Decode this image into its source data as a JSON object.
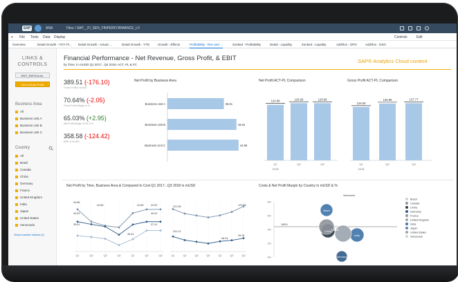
{
  "shell": {
    "logo": "SAP",
    "app_label": "ANA",
    "breadcrumb": "Files / SAP__FI_SEN_FINPERFORMANCE_LV"
  },
  "menu": {
    "items": [
      "File",
      "Tools",
      "Data",
      "Display"
    ],
    "right_items": [
      "Controls",
      "Edit"
    ]
  },
  "tabs": [
    "Overview",
    "Detail Growth - YOY Pr...",
    "Detail Growth - Actual ...",
    "Detail Growth - YTD",
    "Growth - Effects",
    "Profitability - Rev and ...",
    "Zonked - Profitability",
    "Detail - Liquidity",
    "Zonked - Liquidity",
    "Add'tlon - DPO",
    "Add'tlon - DSO"
  ],
  "active_tab_index": 5,
  "side_panel": {
    "header": "LINKS & CONTROLS",
    "button_1": "EBIT_EBITDA etc.",
    "button_2": "Go to Gross Profit",
    "business_area_label": "Business Area",
    "business_area_items": [
      "All",
      "Business Unit A",
      "Business Unit B",
      "Business Unit C"
    ],
    "country_label": "Country",
    "country_items": [
      "All",
      "Brazil",
      "Canada",
      "China",
      "Germany",
      "France",
      "United Kingdom",
      "India",
      "Japan",
      "United States",
      "Venezuela"
    ],
    "show_inactive": "Show Inactive Values (2)"
  },
  "header": {
    "title": "Financial Performance - Net Revenue, Gross Profit, & EBIT",
    "subtitle": "by Time, in mUSD Q1 2017...Q4 2018, ACT, PL & FC",
    "brand": "SAP® Analytics Cloud content"
  },
  "kpis": [
    {
      "value": "389.51",
      "delta": "(-176.10)",
      "delta_sign": "neg",
      "caption": "Gross Profit in mUSD"
    },
    {
      "value": "70.64%",
      "delta": "(-2.05)",
      "delta_sign": "neg",
      "caption": "Gross Profit Margin in %"
    },
    {
      "value": "65.03%",
      "delta": "(+2.95)",
      "delta_sign": "pos",
      "caption": "Net Profit Margin 2018 in %"
    },
    {
      "value": "358.58",
      "delta": "(-124.42)",
      "delta_sign": "neg",
      "caption": "EBIT in mUSD"
    }
  ],
  "chart_titles": {
    "business_area": "Net Profit by Business Area",
    "net_profit_act_pl": "Net Profit ACT-PL Comparison",
    "gross_profit_act_pl": "Gross Profit ACT-PL Comparison",
    "net_profit_time": "Net Profit by Time, Business Area & Compared to Cost Q1 2017...Q3 2018 in mUSD",
    "costs_country": "Costs & Net Profit Margin by Country in mUSD & %"
  },
  "colors": {
    "accent": "#f0ab00",
    "bar": "#a8c8e8",
    "bar_dark": "#5b86b2",
    "negative": "#e00000",
    "positive": "#2b7d2b",
    "shell": "#354a5f"
  },
  "chart_data": [
    {
      "type": "bar",
      "orientation": "horizontal",
      "title": "Net Profit by Business Area",
      "categories": [
        "Business Unit A",
        "Business Unit B",
        "Business Unit C"
      ],
      "values": [
        35.61,
        43.52,
        44.86
      ]
    },
    {
      "type": "bar",
      "title": "Net Profit ACT-PL Comparison",
      "categories": [
        "Q1",
        "Q2",
        "Q3"
      ],
      "category_group": "2018",
      "values": [
        124.98,
        128.69,
        128.68
      ]
    },
    {
      "type": "bar",
      "title": "Gross Profit ACT-PL Comparison",
      "categories": [
        "Q1",
        "Q2",
        "Q3"
      ],
      "category_group": "2018",
      "values": [
        128.59,
        136.98,
        137.77
      ]
    },
    {
      "type": "line",
      "title": "Net Profit by Time, Business Area & Compared to Cost Q1 2017...Q3 2018 in mUSD",
      "panels": [
        {
          "x": [
            "Q1",
            "Q2",
            "Q3",
            "Q4",
            "Q1",
            "Q2",
            "Q3"
          ],
          "series": [
            {
              "values": [
                44.86,
                40.52,
                39.11,
                38.52,
                43.52,
                44.86,
                44.86
              ]
            },
            {
              "values": [
                40.52,
                39.6,
                38.81,
                35.92,
                39.51,
                40.52,
                40.52
              ]
            },
            {
              "values": [
                35.61,
                35.12,
                34.55,
                32.27,
                34.38,
                37.41,
                37.41
              ]
            }
          ],
          "labels": [
            "44.86",
            "40.52",
            "35.61",
            "44.86",
            "44.86",
            "43.52",
            "40.52",
            "37.41",
            "35.61"
          ]
        },
        {
          "x": [
            "Q1",
            "Q2",
            "Q3",
            "Q4",
            "Q1",
            "Q2",
            "Q3"
          ],
          "series": [
            {
              "values": [
                121.55,
                118.2,
                116.8,
                115.4,
                116.9,
                119.5,
                123.58
              ]
            },
            {
              "values": [
                101.21,
                98.5,
                97.3,
                96.04,
                97.6,
                98.4,
                99.94
              ]
            }
          ],
          "labels": [
            "121.55",
            "123.58",
            "101.21",
            "96.04",
            "99.94"
          ]
        }
      ]
    },
    {
      "type": "scatter",
      "title": "Costs & Net Profit Margin by Country in mUSD & %",
      "y_ticks": [
        "8%",
        "6%",
        "4%",
        "2%",
        "0%"
      ],
      "reference_label": "108%",
      "series": [
        {
          "name": "Brazil",
          "label": "Brazil"
        },
        {
          "name": "Canada",
          "label": ""
        },
        {
          "name": "China",
          "label": "China"
        },
        {
          "name": "Germany",
          "label": "Germany"
        },
        {
          "name": "France",
          "label": "France"
        },
        {
          "name": "United Kingdom",
          "label": ""
        },
        {
          "name": "India",
          "label": "India"
        },
        {
          "name": "Japan",
          "label": ""
        },
        {
          "name": "United States",
          "label": ""
        },
        {
          "name": "Venezuela",
          "label": "Venezuela"
        }
      ],
      "legend_position": "right"
    }
  ]
}
